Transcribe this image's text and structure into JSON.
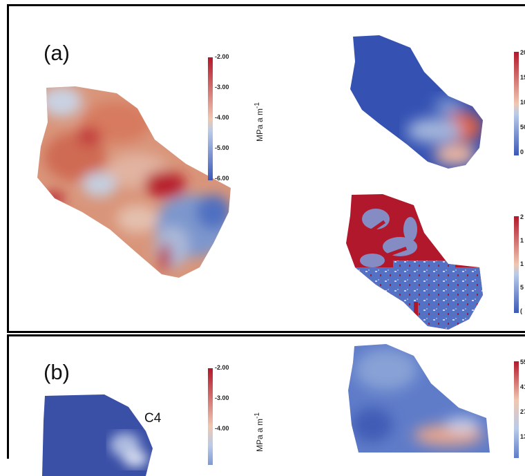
{
  "panel_a": {
    "label": "(a)",
    "main_colorbar": {
      "ticks": [
        "-2.00",
        "-3.00",
        "-4.00",
        "-5.00",
        "-6.00"
      ],
      "unit": "MPa a m",
      "unit_sup": "-1"
    },
    "top_right_colorbar": {
      "ticks": [
        "20",
        "15",
        "10",
        "50",
        "0"
      ]
    },
    "bottom_right_colorbar": {
      "ticks": [
        "2",
        "1",
        "1",
        "5",
        "("
      ]
    }
  },
  "panel_b": {
    "label": "(b)",
    "annotation": "C4",
    "main_colorbar": {
      "ticks": [
        "-2.00",
        "-3.00",
        "-4.00"
      ],
      "unit": "MPa a m",
      "unit_sup": "-1"
    },
    "top_right_colorbar": {
      "ticks": [
        "55",
        "41",
        "27",
        "13"
      ]
    }
  },
  "colors": {
    "red": "#b2182b",
    "blue": "#3b58b8",
    "light": "#d8dde6"
  }
}
